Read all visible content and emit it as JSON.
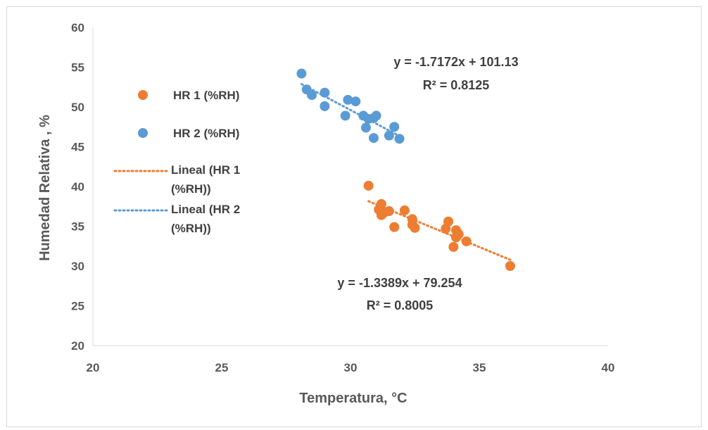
{
  "chart_data": {
    "type": "scatter",
    "xlabel": "Temperatura, °C",
    "ylabel": "Humedad Relativa , %",
    "xlim": [
      20,
      40
    ],
    "ylim": [
      20,
      60
    ],
    "xticks": [
      "20",
      "25",
      "30",
      "35",
      "40"
    ],
    "yticks": [
      "20",
      "25",
      "30",
      "35",
      "40",
      "45",
      "50",
      "55",
      "60"
    ],
    "grid": false,
    "legend_position": "left",
    "series": [
      {
        "name": "HR 1 (%RH)",
        "color": "#ED7D31",
        "points": [
          [
            30.7,
            40.1
          ],
          [
            31.2,
            37.8
          ],
          [
            31.1,
            37.1
          ],
          [
            31.3,
            36.7
          ],
          [
            31.5,
            36.9
          ],
          [
            31.2,
            36.4
          ],
          [
            32.1,
            37.0
          ],
          [
            31.7,
            34.9
          ],
          [
            32.4,
            35.9
          ],
          [
            32.5,
            34.8
          ],
          [
            32.4,
            35.2
          ],
          [
            33.7,
            34.7
          ],
          [
            33.8,
            35.6
          ],
          [
            34.1,
            34.5
          ],
          [
            34.1,
            33.6
          ],
          [
            34.2,
            34.0
          ],
          [
            34.5,
            33.1
          ],
          [
            34.0,
            32.4
          ],
          [
            36.2,
            30.0
          ]
        ]
      },
      {
        "name": "HR 2 (%RH)",
        "color": "#5B9BD5",
        "points": [
          [
            28.1,
            54.2
          ],
          [
            28.3,
            52.2
          ],
          [
            28.5,
            51.5
          ],
          [
            29.0,
            51.8
          ],
          [
            29.0,
            50.1
          ],
          [
            29.9,
            50.9
          ],
          [
            30.2,
            50.7
          ],
          [
            29.8,
            48.9
          ],
          [
            30.5,
            48.9
          ],
          [
            30.7,
            48.5
          ],
          [
            30.9,
            48.6
          ],
          [
            31.0,
            48.9
          ],
          [
            30.6,
            47.4
          ],
          [
            30.9,
            46.1
          ],
          [
            31.5,
            46.4
          ],
          [
            31.7,
            47.5
          ],
          [
            31.9,
            46.0
          ]
        ]
      }
    ],
    "trendlines": [
      {
        "name": "Lineal (HR 1 (%RH))",
        "series": "HR 1 (%RH)",
        "slope": -1.3389,
        "intercept": 79.254,
        "x_range": [
          30.7,
          36.2
        ],
        "color": "#ED7D31",
        "equation": "y = -1.3389x + 79.254",
        "r2": "R² = 0.8005"
      },
      {
        "name": "Lineal (HR 2 (%RH))",
        "series": "HR 2 (%RH)",
        "slope": -1.7172,
        "intercept": 101.13,
        "x_range": [
          28.1,
          31.9
        ],
        "color": "#5B9BD5",
        "equation": "y = -1.7172x + 101.13",
        "r2": "R² = 0.8125"
      }
    ],
    "legend": {
      "items": [
        {
          "type": "marker",
          "label": "HR 1 (%RH)",
          "color": "#ED7D31"
        },
        {
          "type": "marker",
          "label": "HR 2 (%RH)",
          "color": "#5B9BD5"
        },
        {
          "type": "line",
          "label_lines": [
            "Lineal (HR 1",
            "(%RH))"
          ],
          "color": "#ED7D31"
        },
        {
          "type": "line",
          "label_lines": [
            "Lineal (HR 2",
            "(%RH))"
          ],
          "color": "#5B9BD5"
        }
      ]
    }
  }
}
